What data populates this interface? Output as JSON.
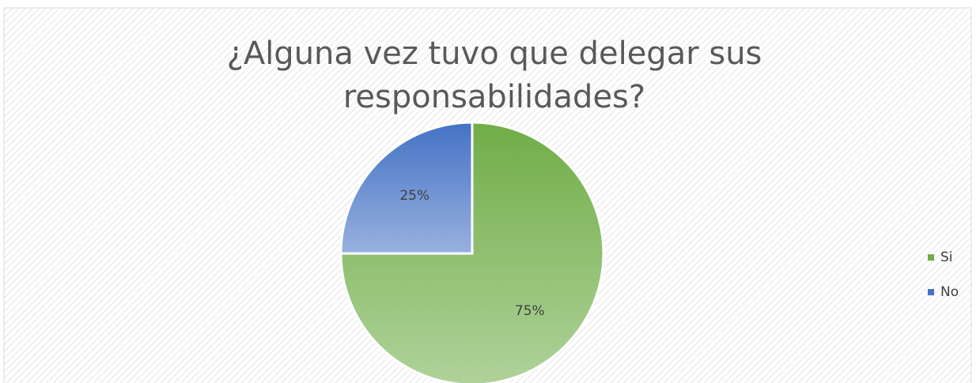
{
  "chart_data": {
    "type": "pie",
    "title": "¿Alguna vez tuvo que delegar sus responsabilidades?",
    "categories": [
      "Si",
      "No"
    ],
    "values": [
      75,
      25
    ],
    "value_labels": [
      "75%",
      "25%"
    ],
    "colors": [
      "#70ad47",
      "#4472c4"
    ],
    "legend": "right"
  }
}
